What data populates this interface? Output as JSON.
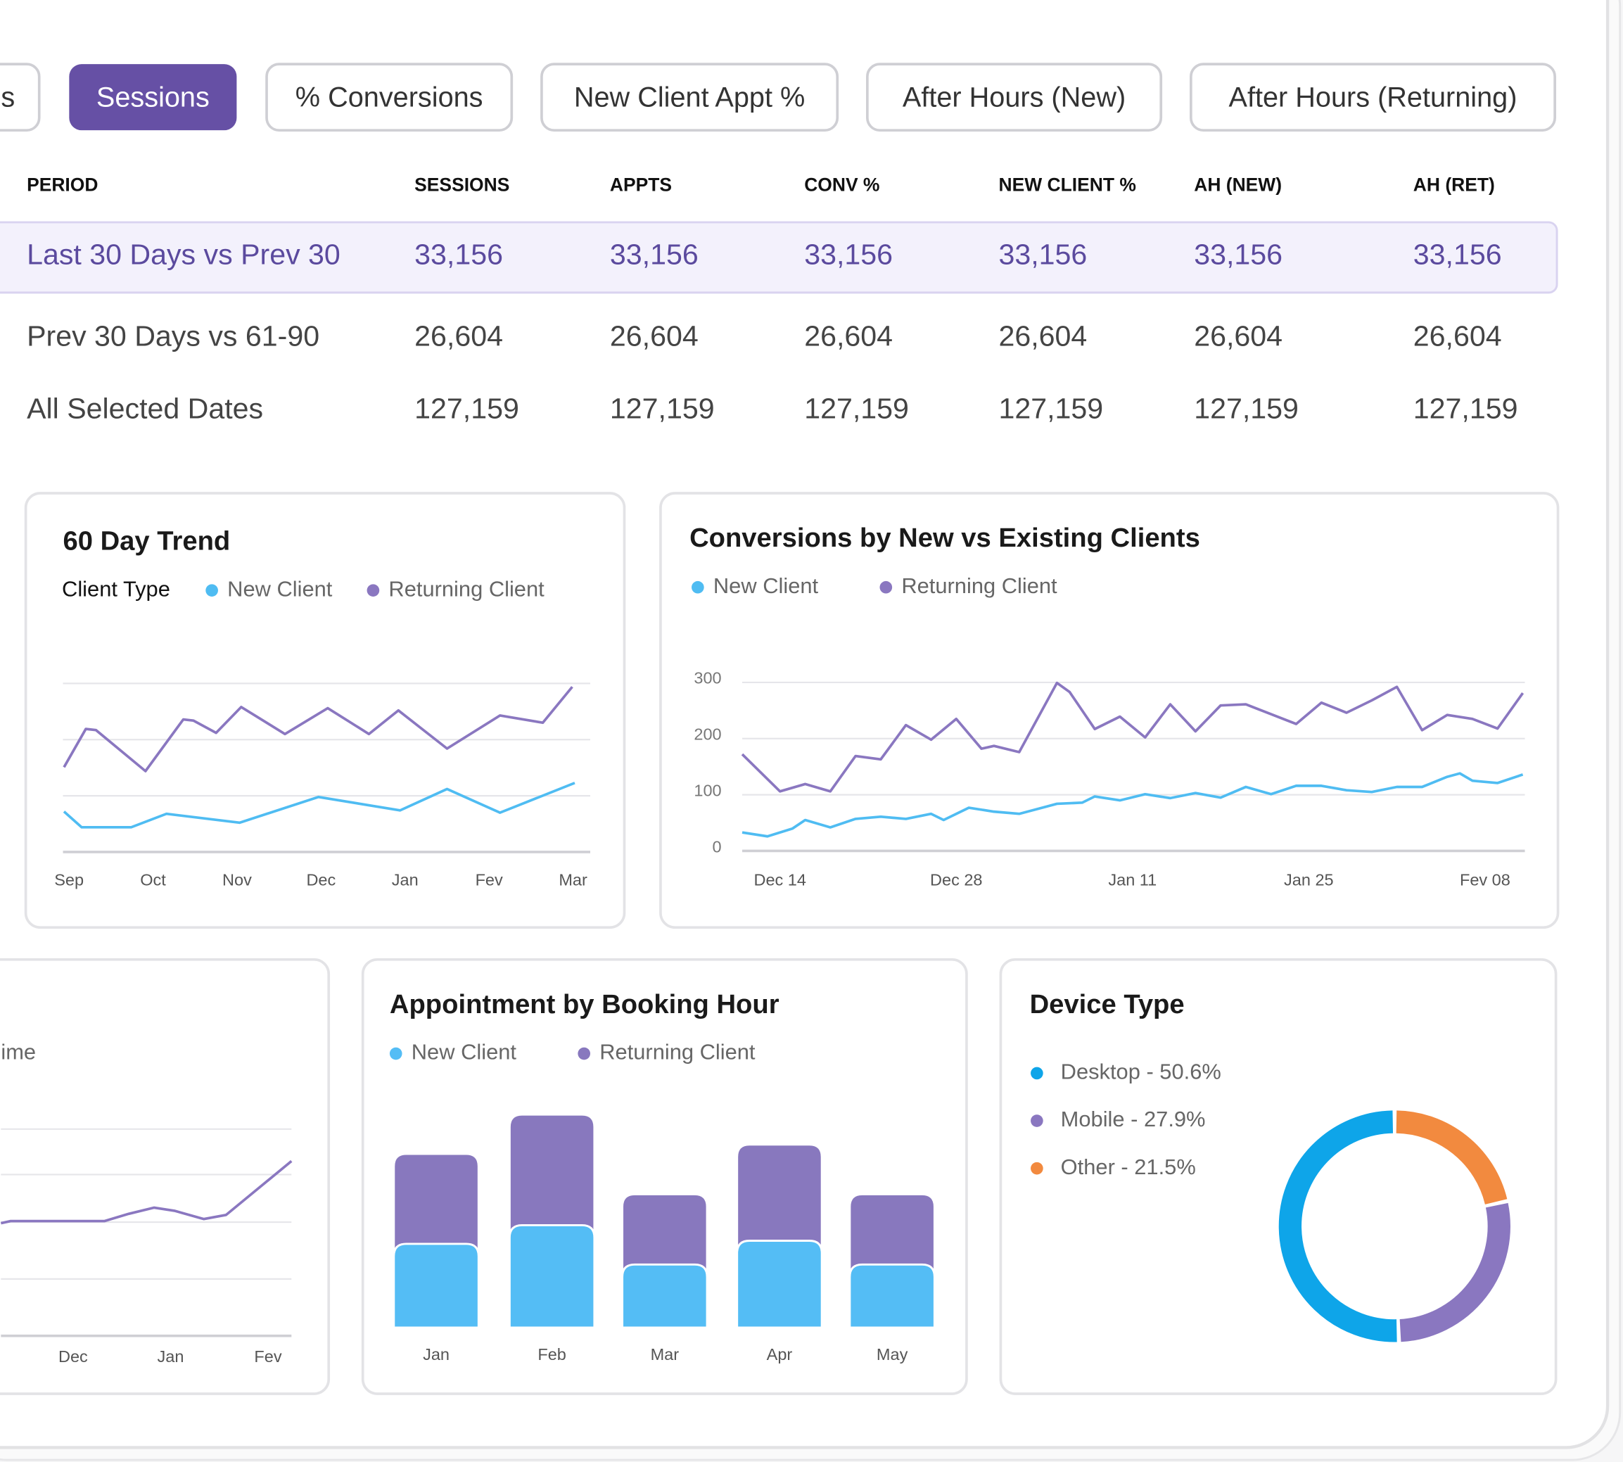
{
  "tabs": [
    "s",
    "Sessions",
    "% Conversions",
    "New Client Appt %",
    "After Hours (New)",
    "After Hours (Returning)"
  ],
  "table": {
    "headers": [
      "PERIOD",
      "SESSIONS",
      "APPTS",
      "CONV %",
      "NEW CLIENT %",
      "AH (NEW)",
      "AH (RET)"
    ],
    "rows": [
      [
        "Last 30 Days vs Prev 30",
        "33,156",
        "33,156",
        "33,156",
        "33,156",
        "33,156",
        "33,156"
      ],
      [
        "Prev 30 Days vs 61-90",
        "26,604",
        "26,604",
        "26,604",
        "26,604",
        "26,604",
        "26,604"
      ],
      [
        "All Selected Dates",
        "127,159",
        "127,159",
        "127,159",
        "127,159",
        "127,159",
        "127,159"
      ]
    ]
  },
  "charts": [
    {
      "type": "line",
      "title": "60 Day Trend",
      "legend_title": "Client Type",
      "xlim": [
        -0.06,
        6.02
      ],
      "ylim": [
        0,
        300
      ],
      "gridlines": [
        0,
        100,
        200,
        300
      ],
      "xticks": [
        {
          "value": 0,
          "label": "Sep"
        },
        {
          "value": 1,
          "label": "Oct"
        },
        {
          "value": 2,
          "label": "Nov"
        },
        {
          "value": 3,
          "label": "Dec"
        },
        {
          "value": 4,
          "label": "Jan"
        },
        {
          "value": 5,
          "label": "Fev"
        },
        {
          "value": 6,
          "label": "Mar"
        }
      ],
      "series": [
        {
          "name": "New Client",
          "color": "#4fbcf2",
          "x": [
            -0.06,
            0.15,
            0.74,
            1.16,
            2.03,
            2.97,
            3.94,
            4.5,
            5.13,
            6.02
          ],
          "values": [
            72,
            44,
            44,
            68,
            52,
            98,
            74,
            112,
            70,
            123
          ]
        },
        {
          "name": "Returning Client",
          "color": "#8a77c0",
          "x": [
            -0.06,
            0.2,
            0.32,
            0.91,
            1.36,
            1.48,
            1.75,
            2.05,
            2.57,
            3.08,
            3.57,
            3.92,
            4.5,
            5.13,
            5.64,
            5.99
          ],
          "values": [
            151,
            219,
            217,
            144,
            236,
            234,
            212,
            258,
            210,
            256,
            210,
            252,
            184,
            243,
            230,
            294
          ]
        }
      ]
    },
    {
      "type": "line",
      "title": "Conversions by New vs Existing Clients",
      "xlim": [
        -3,
        59
      ],
      "ylim": [
        0,
        300
      ],
      "yticks": [
        0,
        100,
        200,
        300
      ],
      "xticks": [
        {
          "value": 0,
          "label": "Dec 14"
        },
        {
          "value": 14,
          "label": "Dec 28"
        },
        {
          "value": 28,
          "label": "Jan 11"
        },
        {
          "value": 42,
          "label": "Jan 25"
        },
        {
          "value": 56,
          "label": "Fev 08"
        }
      ],
      "series": [
        {
          "name": "New Client",
          "color": "#4fbcf2",
          "x": [
            -3,
            -1,
            1,
            2,
            4,
            6,
            8,
            10,
            12,
            13,
            15,
            17,
            19,
            22,
            24,
            25,
            27,
            29,
            31,
            33,
            35,
            37,
            39,
            41,
            43,
            45,
            47,
            49,
            51,
            53,
            54,
            55,
            57,
            59
          ],
          "values": [
            33,
            26,
            40,
            55,
            42,
            57,
            61,
            57,
            66,
            55,
            77,
            70,
            66,
            84,
            86,
            97,
            90,
            101,
            94,
            103,
            95,
            114,
            101,
            116,
            116,
            108,
            105,
            114,
            114,
            132,
            138,
            125,
            121,
            136
          ]
        },
        {
          "name": "Returning Client",
          "color": "#8a77c0",
          "x": [
            -3,
            0,
            2,
            4,
            6,
            8,
            10,
            12,
            14,
            16,
            17,
            19,
            22,
            23,
            25,
            27,
            29,
            31,
            33,
            35,
            37,
            41,
            43,
            45,
            47,
            49,
            51,
            53,
            55,
            57,
            59
          ],
          "values": [
            172,
            106,
            119,
            106,
            169,
            163,
            224,
            198,
            235,
            182,
            187,
            176,
            299,
            283,
            217,
            239,
            202,
            261,
            213,
            259,
            261,
            226,
            264,
            246,
            268,
            292,
            215,
            242,
            235,
            218,
            281
          ]
        }
      ]
    },
    {
      "type": "line",
      "title": "ime",
      "xlim": [
        -0.74,
        2.24
      ],
      "ylim": [
        0,
        200
      ],
      "gridlines": [
        0,
        55,
        110,
        156,
        200
      ],
      "xticks": [
        {
          "value": 0,
          "label": "Dec"
        },
        {
          "value": 1,
          "label": "Jan"
        },
        {
          "value": 2,
          "label": "Fev"
        }
      ],
      "series": [
        {
          "color": "#8a77c0",
          "x": [
            -0.74,
            -0.64,
            0.32,
            0.57,
            0.83,
            1.04,
            1.34,
            1.57,
            2.24
          ],
          "values": [
            109,
            111,
            111,
            118,
            124,
            121,
            113,
            117,
            169
          ]
        }
      ]
    },
    {
      "type": "bar",
      "stacked": true,
      "title": "Appointment by Booking Hour",
      "categories": [
        "Jan",
        "Feb",
        "Mar",
        "Apr",
        "May"
      ],
      "ylim": [
        0,
        210
      ],
      "series": [
        {
          "name": "New Client",
          "color": "#54bdf5",
          "values": [
            81,
            99,
            61,
            84,
            61
          ]
        },
        {
          "name": "Returning Client",
          "color": "#8878be",
          "values": [
            87,
            107,
            68,
            93,
            68
          ]
        }
      ]
    },
    {
      "type": "donut",
      "title": "Device Type",
      "values": [
        50.6,
        27.9,
        21.5
      ],
      "value_labels": [
        "Desktop - 50.6%",
        "Mobile - 27.9%",
        "Other - 21.5%"
      ],
      "colors": [
        "#0ea5e9",
        "#8a77c0",
        "#f28a3f"
      ]
    }
  ]
}
